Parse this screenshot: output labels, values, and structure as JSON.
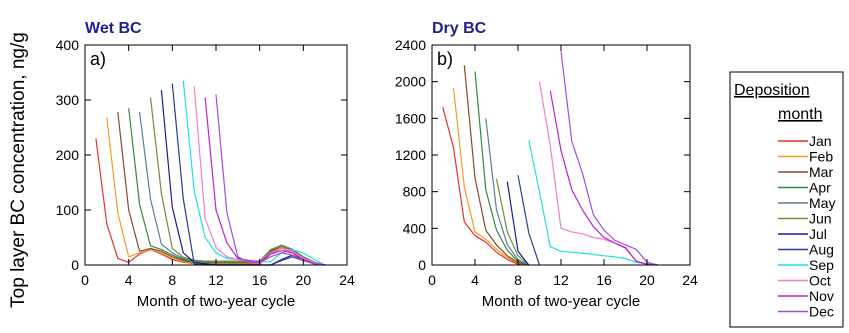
{
  "y_axis_label": "Top layer BC concentration, ng/g",
  "legend": {
    "title_line1": "Deposition",
    "title_line2": "month"
  },
  "colors": {
    "Jan": "#e8312a",
    "Feb": "#f39c25",
    "Mar": "#8b4a2b",
    "Apr": "#2e8b3a",
    "May": "#5b7f96",
    "Jun": "#7a8a3a",
    "Jul": "#1a1aa0",
    "Aug": "#2a3f8f",
    "Sep": "#1fe0e8",
    "Oct": "#f27fc8",
    "Nov": "#c01fd0",
    "Dec": "#a34de0"
  },
  "chart_data": [
    {
      "type": "line",
      "title": "Wet BC",
      "panel_label": "a)",
      "xlabel": "Month of two-year cycle",
      "xlim": [
        0,
        24
      ],
      "ylim": [
        0,
        400
      ],
      "xticks": [
        0,
        4,
        8,
        12,
        16,
        20,
        24
      ],
      "yticks": [
        0,
        100,
        200,
        300,
        400
      ],
      "series": [
        {
          "name": "Jan",
          "x": [
            1,
            2,
            3,
            4,
            5,
            6,
            7,
            8,
            9,
            10,
            11,
            12,
            13,
            14,
            15,
            16,
            17,
            18,
            19,
            20,
            21,
            22
          ],
          "y": [
            230,
            75,
            12,
            5,
            20,
            28,
            20,
            10,
            5,
            3,
            2,
            2,
            2,
            2,
            2,
            2,
            20,
            30,
            22,
            10,
            3,
            0
          ]
        },
        {
          "name": "Feb",
          "x": [
            2,
            3,
            4,
            5,
            6,
            7,
            8,
            9,
            10,
            11,
            12,
            13,
            14,
            15,
            16,
            17,
            18,
            19,
            20,
            21,
            22
          ],
          "y": [
            268,
            95,
            15,
            22,
            28,
            22,
            12,
            6,
            4,
            3,
            3,
            3,
            3,
            3,
            3,
            22,
            32,
            25,
            12,
            4,
            0
          ]
        },
        {
          "name": "Mar",
          "x": [
            3,
            4,
            5,
            6,
            7,
            8,
            9,
            10,
            11,
            12,
            13,
            14,
            15,
            16,
            17,
            18,
            19,
            20,
            21,
            22
          ],
          "y": [
            278,
            100,
            25,
            30,
            25,
            15,
            8,
            5,
            4,
            4,
            4,
            4,
            4,
            4,
            24,
            34,
            27,
            14,
            4,
            0
          ]
        },
        {
          "name": "Apr",
          "x": [
            4,
            5,
            6,
            7,
            8,
            9,
            10,
            11,
            12,
            13,
            14,
            15,
            16,
            17,
            18,
            19,
            20,
            21,
            22
          ],
          "y": [
            285,
            110,
            35,
            28,
            18,
            10,
            6,
            5,
            5,
            5,
            5,
            5,
            5,
            26,
            35,
            28,
            15,
            5,
            0
          ]
        },
        {
          "name": "May",
          "x": [
            5,
            6,
            7,
            8,
            9,
            10,
            11,
            12,
            13,
            14,
            15,
            16,
            17,
            18,
            19,
            20,
            21,
            22
          ],
          "y": [
            278,
            120,
            38,
            22,
            12,
            8,
            6,
            6,
            6,
            6,
            6,
            6,
            28,
            36,
            29,
            15,
            5,
            0
          ]
        },
        {
          "name": "Jun",
          "x": [
            6,
            7,
            8,
            9,
            10,
            11,
            12,
            13,
            14,
            15,
            16,
            17,
            18,
            19,
            20,
            21,
            22
          ],
          "y": [
            305,
            130,
            30,
            14,
            9,
            7,
            7,
            7,
            7,
            7,
            7,
            28,
            34,
            28,
            14,
            5,
            0
          ]
        },
        {
          "name": "Jul",
          "x": [
            7,
            8,
            9,
            10,
            11,
            12,
            13,
            14,
            15,
            16,
            17,
            18,
            19,
            20,
            21,
            22
          ],
          "y": [
            318,
            105,
            22,
            5,
            2,
            0,
            0,
            0,
            0,
            0,
            0,
            10,
            18,
            10,
            3,
            0
          ]
        },
        {
          "name": "Aug",
          "x": [
            8,
            9,
            10,
            11,
            12,
            13,
            14,
            15,
            16,
            17,
            18,
            19,
            20,
            21,
            22
          ],
          "y": [
            330,
            120,
            2,
            0,
            0,
            0,
            0,
            0,
            0,
            0,
            8,
            15,
            8,
            2,
            0
          ]
        },
        {
          "name": "Sep",
          "x": [
            9,
            10,
            11,
            12,
            13,
            14,
            15,
            16,
            17,
            18,
            19,
            20,
            21,
            22
          ],
          "y": [
            335,
            135,
            50,
            22,
            12,
            10,
            8,
            6,
            6,
            22,
            28,
            22,
            10,
            0
          ]
        },
        {
          "name": "Oct",
          "x": [
            10,
            11,
            12,
            13,
            14,
            15,
            16,
            17,
            18,
            19,
            20,
            21,
            22
          ],
          "y": [
            325,
            85,
            32,
            15,
            10,
            8,
            6,
            22,
            30,
            25,
            12,
            4,
            0
          ]
        },
        {
          "name": "Nov",
          "x": [
            11,
            12,
            13,
            14,
            15,
            16,
            17,
            18,
            19,
            20,
            21,
            22
          ],
          "y": [
            305,
            100,
            40,
            12,
            8,
            6,
            20,
            26,
            22,
            10,
            3,
            0
          ]
        },
        {
          "name": "Dec",
          "x": [
            12,
            13,
            14,
            15,
            16,
            17,
            18,
            19,
            20,
            21,
            22
          ],
          "y": [
            310,
            95,
            15,
            5,
            4,
            15,
            22,
            18,
            8,
            2,
            0
          ]
        }
      ]
    },
    {
      "type": "line",
      "title": "Dry BC",
      "panel_label": "b)",
      "xlabel": "Month of two-year cycle",
      "xlim": [
        0,
        24
      ],
      "ylim": [
        0,
        2400
      ],
      "xticks": [
        0,
        4,
        8,
        12,
        16,
        20,
        24
      ],
      "yticks": [
        0,
        400,
        800,
        1200,
        1600,
        2000,
        2400
      ],
      "series": [
        {
          "name": "Jan",
          "x": [
            1,
            2,
            3,
            4,
            5,
            6,
            7,
            8,
            9
          ],
          "y": [
            1720,
            1280,
            470,
            320,
            250,
            140,
            60,
            10,
            0
          ]
        },
        {
          "name": "Feb",
          "x": [
            2,
            3,
            4,
            5,
            6,
            7,
            8,
            9
          ],
          "y": [
            1930,
            850,
            360,
            280,
            170,
            80,
            20,
            0
          ]
        },
        {
          "name": "Mar",
          "x": [
            3,
            4,
            5,
            6,
            7,
            8,
            9
          ],
          "y": [
            2180,
            950,
            380,
            220,
            100,
            25,
            0
          ]
        },
        {
          "name": "Apr",
          "x": [
            4,
            5,
            6,
            7,
            8,
            9
          ],
          "y": [
            2110,
            820,
            380,
            160,
            40,
            0
          ]
        },
        {
          "name": "May",
          "x": [
            5,
            6,
            7,
            8,
            9
          ],
          "y": [
            1600,
            600,
            220,
            60,
            0
          ]
        },
        {
          "name": "Jun",
          "x": [
            6,
            7,
            8,
            9
          ],
          "y": [
            940,
            360,
            100,
            0
          ]
        },
        {
          "name": "Jul",
          "x": [
            7,
            8,
            9
          ],
          "y": [
            910,
            150,
            0
          ]
        },
        {
          "name": "Aug",
          "x": [
            8,
            9,
            10
          ],
          "y": [
            980,
            350,
            0
          ]
        },
        {
          "name": "Sep",
          "x": [
            9,
            10,
            11,
            12,
            13,
            14,
            15,
            16,
            17,
            18,
            19,
            20,
            21
          ],
          "y": [
            1360,
            800,
            200,
            150,
            140,
            130,
            115,
            100,
            90,
            70,
            30,
            10,
            0
          ]
        },
        {
          "name": "Oct",
          "x": [
            10,
            11,
            12,
            13,
            14,
            15,
            16,
            17,
            18,
            19,
            20,
            21
          ],
          "y": [
            2000,
            1300,
            400,
            360,
            340,
            300,
            280,
            240,
            180,
            40,
            10,
            0
          ]
        },
        {
          "name": "Nov",
          "x": [
            11,
            12,
            13,
            14,
            15,
            16,
            17,
            18,
            19,
            20,
            21
          ],
          "y": [
            1900,
            1250,
            820,
            600,
            420,
            300,
            240,
            190,
            40,
            10,
            0
          ]
        },
        {
          "name": "Dec",
          "x": [
            12,
            13,
            14,
            15,
            16,
            17,
            18,
            19,
            20,
            21
          ],
          "y": [
            2330,
            1350,
            1000,
            550,
            380,
            270,
            220,
            170,
            30,
            0
          ]
        }
      ]
    }
  ]
}
